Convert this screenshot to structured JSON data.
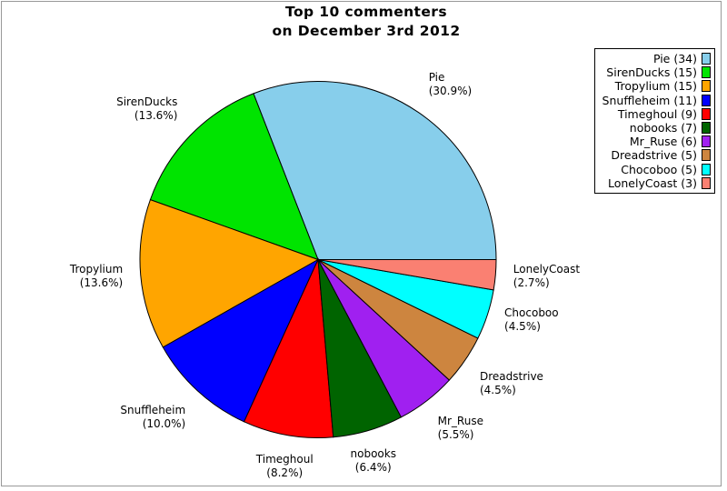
{
  "figure": {
    "title_line1": "Top 10 commenters",
    "title_line2": "on December 3rd 2012",
    "background_color": "#ffffff",
    "frame_color": "#999999"
  },
  "chart_data": {
    "type": "pie",
    "title": "Top 10 commenters on December 3rd 2012",
    "total": 110,
    "start_angle_deg": 0,
    "direction": "counterclockwise",
    "label_distance": 1.1,
    "legend_position": "upper-right",
    "outline_color": "#000000",
    "slices": [
      {
        "name": "Pie",
        "value": 34,
        "pct_label": "(30.9%)",
        "legend_label": "Pie (34)",
        "color": "#87CEEB"
      },
      {
        "name": "SirenDucks",
        "value": 15,
        "pct_label": "(13.6%)",
        "legend_label": "SirenDucks (15)",
        "color": "#00E400"
      },
      {
        "name": "Tropylium",
        "value": 15,
        "pct_label": "(13.6%)",
        "legend_label": "Tropylium (15)",
        "color": "#FFA500"
      },
      {
        "name": "Snuffleheim",
        "value": 11,
        "pct_label": "(10.0%)",
        "legend_label": "Snuffleheim (11)",
        "color": "#0000FF"
      },
      {
        "name": "Timeghoul",
        "value": 9,
        "pct_label": "(8.2%)",
        "legend_label": "Timeghoul (9)",
        "color": "#FF0000"
      },
      {
        "name": "nobooks",
        "value": 7,
        "pct_label": "(6.4%)",
        "legend_label": "nobooks (7)",
        "color": "#006400"
      },
      {
        "name": "Mr_Ruse",
        "value": 6,
        "pct_label": "(5.5%)",
        "legend_label": "Mr_Ruse (6)",
        "color": "#A020F0"
      },
      {
        "name": "Dreadstrive",
        "value": 5,
        "pct_label": "(4.5%)",
        "legend_label": "Dreadstrive (5)",
        "color": "#CD853F"
      },
      {
        "name": "Chocoboo",
        "value": 5,
        "pct_label": "(4.5%)",
        "legend_label": "Chocoboo (5)",
        "color": "#00FFFF"
      },
      {
        "name": "LonelyCoast",
        "value": 3,
        "pct_label": "(2.7%)",
        "legend_label": "LonelyCoast (3)",
        "color": "#FA8072"
      }
    ]
  }
}
